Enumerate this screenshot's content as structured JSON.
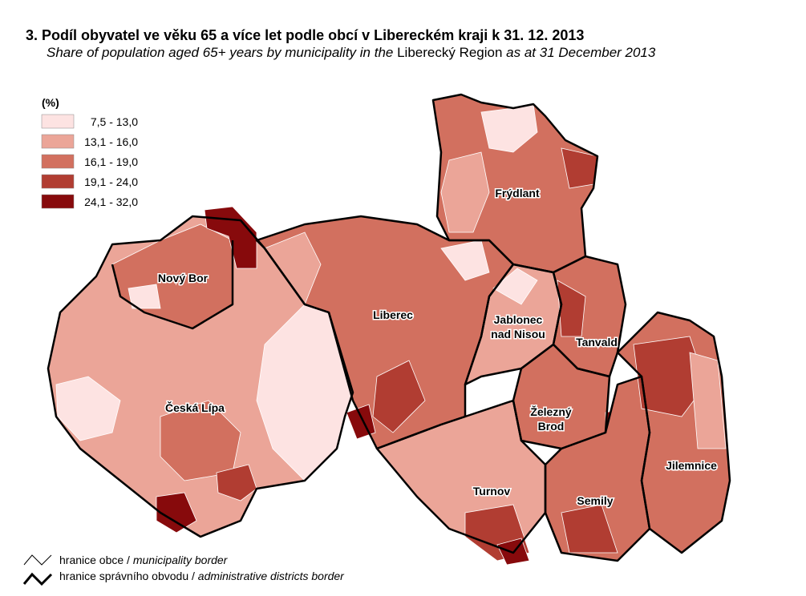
{
  "header": {
    "title": "3. Podíl obyvatel ve věku 65 a více let podle obcí v Libereckém kraji k 31. 12. 2013",
    "subtitle": [
      "Share of population aged 65+ years by municipality in the ",
      "Liberecký Region",
      " as at 31 December 2013"
    ]
  },
  "legend": {
    "title": "(%)",
    "items": [
      {
        "label": "7,5 - 13,0",
        "color": "#fde3e2"
      },
      {
        "label": "13,1 - 16,0",
        "color": "#eba598"
      },
      {
        "label": "16,1 - 19,0",
        "color": "#d2705f"
      },
      {
        "label": "19,1 - 24,0",
        "color": "#b13d32"
      },
      {
        "label": "24,1 - 32,0",
        "color": "#870a0c"
      }
    ]
  },
  "districts": [
    [
      "Frýdlant"
    ],
    [
      "Nový Bor"
    ],
    [
      "Liberec"
    ],
    [
      "Jablonec",
      "nad Nisou"
    ],
    [
      "Tanvald"
    ],
    [
      "Česká Lípa"
    ],
    [
      "Železný",
      "Brod"
    ],
    [
      "Turnov"
    ],
    [
      "Semily"
    ],
    [
      "Jilemnice"
    ]
  ],
  "footer": [
    [
      "hranice obce / ",
      "municipality border"
    ],
    [
      "hranice správního obvodu / ",
      "administrative districts border"
    ]
  ]
}
